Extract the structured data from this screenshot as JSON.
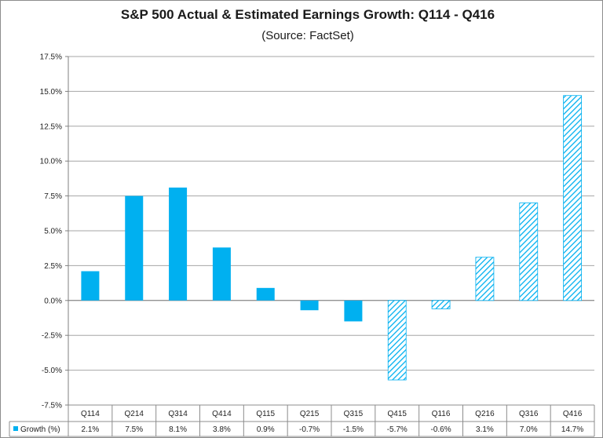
{
  "chart_data": {
    "type": "bar",
    "title": "S&P 500 Actual & Estimated Earnings Growth: Q114 - Q416",
    "subtitle": "(Source: FactSet)",
    "categories": [
      "Q114",
      "Q214",
      "Q314",
      "Q414",
      "Q115",
      "Q215",
      "Q315",
      "Q415",
      "Q116",
      "Q216",
      "Q316",
      "Q416"
    ],
    "series": [
      {
        "name": "Growth (%)",
        "values": [
          2.1,
          7.5,
          8.1,
          3.8,
          0.9,
          -0.7,
          -1.5,
          -5.7,
          -0.6,
          3.1,
          7.0,
          14.7
        ],
        "value_labels": [
          "2.1%",
          "7.5%",
          "8.1%",
          "3.8%",
          "0.9%",
          "-0.7%",
          "-1.5%",
          "-5.7%",
          "-0.6%",
          "3.1%",
          "7.0%",
          "14.7%"
        ],
        "estimated": [
          false,
          false,
          false,
          false,
          false,
          false,
          false,
          true,
          true,
          true,
          true,
          true
        ]
      }
    ],
    "ylim": [
      -7.5,
      17.5
    ],
    "yticks": [
      17.5,
      15.0,
      12.5,
      10.0,
      7.5,
      5.0,
      2.5,
      0.0,
      -2.5,
      -5.0,
      -7.5
    ],
    "ytick_labels": [
      "17.5%",
      "15.0%",
      "12.5%",
      "10.0%",
      "7.5%",
      "5.0%",
      "2.5%",
      "0.0%",
      "-2.5%",
      "-5.0%",
      "-7.5%"
    ],
    "xlabel": "",
    "ylabel": "",
    "grid": true,
    "legend": "data-table-left",
    "colors": {
      "bar": "#00b0f0",
      "grid": "#a6a6a6",
      "axis": "#7f7f7f"
    }
  }
}
